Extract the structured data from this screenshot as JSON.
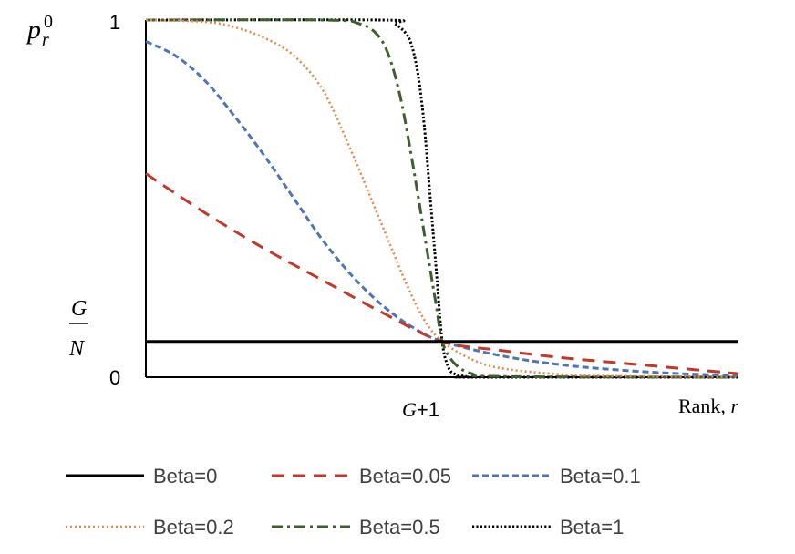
{
  "chart_data": {
    "type": "line",
    "ylabel": {
      "base": "p",
      "sup": "0",
      "sub": "r"
    },
    "xlabel": {
      "text": "Rank, ",
      "var": "r"
    },
    "y_ticks": {
      "top": "1",
      "bottom": "0"
    },
    "y_mid_label": {
      "numerator": "G",
      "denominator": "N"
    },
    "x_tick": {
      "var": "G",
      "suffix": "+1"
    },
    "ylim": [
      0,
      1
    ],
    "xlim": [
      0,
      1
    ],
    "grid": false,
    "legend_position": "bottom",
    "crossover": {
      "x": 0.5,
      "y": 0.1
    },
    "series": [
      {
        "name": "Beta=0",
        "color": "#000000",
        "dash": "solid",
        "x": [
          0,
          1
        ],
        "y": [
          0.1,
          0.1
        ]
      },
      {
        "name": "Beta=0.05",
        "color": "#c0392b",
        "dash": "long-dash",
        "x": [
          0,
          0.1,
          0.2,
          0.3,
          0.4,
          0.5,
          0.6,
          0.7,
          0.8,
          0.9,
          1
        ],
        "y": [
          0.57,
          0.46,
          0.36,
          0.27,
          0.18,
          0.1,
          0.075,
          0.055,
          0.04,
          0.025,
          0.01
        ]
      },
      {
        "name": "Beta=0.1",
        "color": "#4e74b8",
        "dash": "short-dash",
        "x": [
          0,
          0.05,
          0.1,
          0.15,
          0.2,
          0.25,
          0.3,
          0.35,
          0.4,
          0.45,
          0.5,
          0.6,
          0.7,
          0.8,
          0.9,
          1
        ],
        "y": [
          0.94,
          0.9,
          0.83,
          0.73,
          0.62,
          0.5,
          0.38,
          0.28,
          0.2,
          0.14,
          0.1,
          0.06,
          0.035,
          0.02,
          0.01,
          0.005
        ]
      },
      {
        "name": "Beta=0.2",
        "color": "#e8894a",
        "dash": "dotted",
        "x": [
          0,
          0.1,
          0.15,
          0.2,
          0.25,
          0.3,
          0.35,
          0.38,
          0.41,
          0.44,
          0.47,
          0.5,
          0.55,
          0.6,
          0.7,
          0.8,
          1
        ],
        "y": [
          1.0,
          0.995,
          0.98,
          0.95,
          0.9,
          0.8,
          0.62,
          0.5,
          0.38,
          0.26,
          0.16,
          0.1,
          0.05,
          0.025,
          0.008,
          0.003,
          0.001
        ]
      },
      {
        "name": "Beta=0.5",
        "color": "#3f5e2f",
        "dash": "dash-dot",
        "x": [
          0,
          0.3,
          0.36,
          0.39,
          0.41,
          0.43,
          0.45,
          0.47,
          0.49,
          0.5,
          0.52,
          0.55,
          0.6,
          1
        ],
        "y": [
          1.0,
          1.0,
          0.99,
          0.96,
          0.9,
          0.78,
          0.6,
          0.4,
          0.2,
          0.1,
          0.04,
          0.01,
          0.002,
          0.0
        ]
      },
      {
        "name": "Beta=1",
        "color": "#000000",
        "dash": "fine-dot",
        "x": [
          0,
          0.4,
          0.42,
          0.44,
          0.45,
          0.46,
          0.47,
          0.48,
          0.49,
          0.5,
          0.51,
          0.52,
          0.54,
          0.56,
          1
        ],
        "y": [
          1.0,
          1.0,
          0.99,
          0.96,
          0.92,
          0.84,
          0.7,
          0.5,
          0.3,
          0.1,
          0.03,
          0.01,
          0.002,
          0.0,
          0.0
        ]
      }
    ]
  }
}
